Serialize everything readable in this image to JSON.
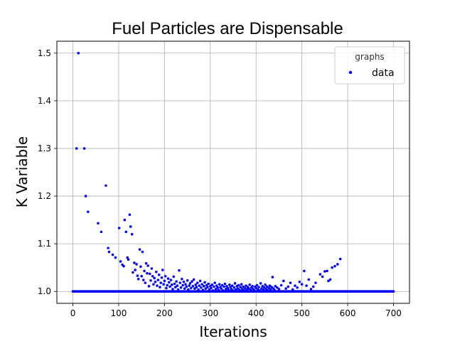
{
  "chart_data": {
    "type": "scatter",
    "title": "Fuel Particles are Dispensable",
    "xlabel": "Iterations",
    "ylabel": "K Variable",
    "xlim": [
      -35,
      735
    ],
    "ylim": [
      0.975,
      1.525
    ],
    "xticks": [
      0,
      100,
      200,
      300,
      400,
      500,
      600,
      700
    ],
    "yticks": [
      1.0,
      1.1,
      1.2,
      1.3,
      1.4,
      1.5
    ],
    "xtick_labels": [
      "0",
      "100",
      "200",
      "300",
      "400",
      "500",
      "600",
      "700"
    ],
    "ytick_labels": [
      "1.0",
      "1.1",
      "1.2",
      "1.3",
      "1.4",
      "1.5"
    ],
    "grid": true,
    "legend": {
      "title": "graphs",
      "placement": "top-right",
      "entries": [
        "data"
      ]
    },
    "series": [
      {
        "name": "data",
        "color": "#0000ff",
        "baseline": {
          "y": 1.0,
          "x_start": 0,
          "x_end": 700,
          "x_step": 2
        },
        "points": [
          [
            12,
            1.5
          ],
          [
            8,
            1.3
          ],
          [
            25,
            1.3
          ],
          [
            28,
            1.2
          ],
          [
            33,
            1.167
          ],
          [
            55,
            1.143
          ],
          [
            62,
            1.125
          ],
          [
            72,
            1.222
          ],
          [
            77,
            1.091
          ],
          [
            79,
            1.083
          ],
          [
            87,
            1.077
          ],
          [
            93,
            1.071
          ],
          [
            101,
            1.133
          ],
          [
            104,
            1.063
          ],
          [
            108,
            1.056
          ],
          [
            111,
            1.053
          ],
          [
            113,
            1.15
          ],
          [
            116,
            1.125
          ],
          [
            119,
            1.071
          ],
          [
            121,
            1.067
          ],
          [
            124,
            1.161
          ],
          [
            126,
            1.136
          ],
          [
            129,
            1.12
          ],
          [
            131,
            1.04
          ],
          [
            134,
            1.06
          ],
          [
            136,
            1.045
          ],
          [
            139,
            1.057
          ],
          [
            141,
            1.033
          ],
          [
            143,
            1.026
          ],
          [
            146,
            1.088
          ],
          [
            148,
            1.052
          ],
          [
            150,
            1.032
          ],
          [
            152,
            1.083
          ],
          [
            154,
            1.024
          ],
          [
            156,
            1.043
          ],
          [
            158,
            1.018
          ],
          [
            160,
            1.059
          ],
          [
            162,
            1.038
          ],
          [
            164,
            1.054
          ],
          [
            166,
            1.011
          ],
          [
            168,
            1.037
          ],
          [
            170,
            1.023
          ],
          [
            172,
            1.048
          ],
          [
            174,
            1.032
          ],
          [
            176,
            1.015
          ],
          [
            178,
            1.028
          ],
          [
            180,
            1.02
          ],
          [
            182,
            1.041
          ],
          [
            184,
            1.012
          ],
          [
            186,
            1.024
          ],
          [
            188,
            1.035
          ],
          [
            190,
            1.009
          ],
          [
            192,
            1.018
          ],
          [
            194,
            1.029
          ],
          [
            196,
            1.045
          ],
          [
            198,
            1.015
          ],
          [
            200,
            1.022
          ],
          [
            202,
            1.032
          ],
          [
            204,
            1.007
          ],
          [
            206,
            1.013
          ],
          [
            208,
            1.027
          ],
          [
            210,
            1.019
          ],
          [
            212,
            1.01
          ],
          [
            214,
            1.024
          ],
          [
            216,
            1.014
          ],
          [
            218,
            1.005
          ],
          [
            220,
            1.031
          ],
          [
            222,
            1.016
          ],
          [
            224,
            1.009
          ],
          [
            226,
            1.021
          ],
          [
            228,
            1.012
          ],
          [
            230,
            1.004
          ],
          [
            232,
            1.044
          ],
          [
            234,
            1.018
          ],
          [
            236,
            1.008
          ],
          [
            238,
            1.026
          ],
          [
            240,
            1.013
          ],
          [
            242,
            1.02
          ],
          [
            244,
            1.006
          ],
          [
            246,
            1.015
          ],
          [
            248,
            1.01
          ],
          [
            250,
            1.023
          ],
          [
            252,
            1.004
          ],
          [
            254,
            1.012
          ],
          [
            256,
            1.017
          ],
          [
            258,
            1.007
          ],
          [
            260,
            1.021
          ],
          [
            262,
            1.011
          ],
          [
            264,
            1.025
          ],
          [
            266,
            1.006
          ],
          [
            268,
            1.014
          ],
          [
            270,
            1.009
          ],
          [
            272,
            1.018
          ],
          [
            274,
            1.004
          ],
          [
            276,
            1.012
          ],
          [
            278,
            1.022
          ],
          [
            280,
            1.008
          ],
          [
            282,
            1.015
          ],
          [
            284,
            1.003
          ],
          [
            286,
            1.011
          ],
          [
            288,
            1.019
          ],
          [
            290,
            1.006
          ],
          [
            292,
            1.013
          ],
          [
            294,
            1.009
          ],
          [
            296,
            1.016
          ],
          [
            298,
            1.004
          ],
          [
            300,
            1.011
          ],
          [
            302,
            1.007
          ],
          [
            304,
            1.014
          ],
          [
            306,
            1.002
          ],
          [
            308,
            1.01
          ],
          [
            310,
            1.018
          ],
          [
            312,
            1.005
          ],
          [
            314,
            1.012
          ],
          [
            316,
            1.008
          ],
          [
            318,
            1.003
          ],
          [
            320,
            1.015
          ],
          [
            322,
            1.009
          ],
          [
            324,
            1.006
          ],
          [
            326,
            1.013
          ],
          [
            328,
            1.002
          ],
          [
            330,
            1.01
          ],
          [
            332,
            1.016
          ],
          [
            334,
            1.005
          ],
          [
            336,
            1.011
          ],
          [
            338,
            1.007
          ],
          [
            340,
            1.003
          ],
          [
            342,
            1.014
          ],
          [
            344,
            1.009
          ],
          [
            346,
            1.005
          ],
          [
            348,
            1.012
          ],
          [
            350,
            1.002
          ],
          [
            352,
            1.008
          ],
          [
            354,
            1.017
          ],
          [
            356,
            1.004
          ],
          [
            358,
            1.011
          ],
          [
            360,
            1.006
          ],
          [
            362,
            1.013
          ],
          [
            364,
            1.003
          ],
          [
            366,
            1.009
          ],
          [
            368,
            1.015
          ],
          [
            370,
            1.005
          ],
          [
            372,
            1.01
          ],
          [
            374,
            1.002
          ],
          [
            376,
            1.007
          ],
          [
            378,
            1.012
          ],
          [
            380,
            1.004
          ],
          [
            382,
            1.009
          ],
          [
            384,
            1.006
          ],
          [
            386,
            1.014
          ],
          [
            388,
            1.003
          ],
          [
            390,
            1.008
          ],
          [
            392,
            1.011
          ],
          [
            394,
            1.005
          ],
          [
            396,
            1.002
          ],
          [
            398,
            1.01
          ],
          [
            400,
            1.007
          ],
          [
            402,
            1.013
          ],
          [
            404,
            1.004
          ],
          [
            406,
            1.009
          ],
          [
            408,
            1.002
          ],
          [
            410,
            1.017
          ],
          [
            412,
            1.006
          ],
          [
            414,
            1.011
          ],
          [
            416,
            1.003
          ],
          [
            418,
            1.008
          ],
          [
            420,
            1.014
          ],
          [
            422,
            1.005
          ],
          [
            424,
            1.01
          ],
          [
            426,
            1.002
          ],
          [
            428,
            1.007
          ],
          [
            430,
            1.012
          ],
          [
            432,
            1.004
          ],
          [
            434,
            1.009
          ],
          [
            436,
            1.03
          ],
          [
            438,
            1.006
          ],
          [
            440,
            1.003
          ],
          [
            442,
            1.011
          ],
          [
            446,
            1.008
          ],
          [
            450,
            1.005
          ],
          [
            455,
            1.013
          ],
          [
            460,
            1.022
          ],
          [
            465,
            1.006
          ],
          [
            470,
            1.01
          ],
          [
            475,
            1.018
          ],
          [
            480,
            1.004
          ],
          [
            485,
            1.012
          ],
          [
            490,
            1.008
          ],
          [
            495,
            1.02
          ],
          [
            500,
            1.015
          ],
          [
            505,
            1.043
          ],
          [
            510,
            1.012
          ],
          [
            515,
            1.025
          ],
          [
            520,
            1.005
          ],
          [
            525,
            1.01
          ],
          [
            530,
            1.018
          ],
          [
            540,
            1.036
          ],
          [
            545,
            1.031
          ],
          [
            550,
            1.042
          ],
          [
            555,
            1.043
          ],
          [
            558,
            1.022
          ],
          [
            562,
            1.025
          ],
          [
            566,
            1.05
          ],
          [
            572,
            1.053
          ],
          [
            578,
            1.057
          ],
          [
            584,
            1.068
          ]
        ]
      }
    ]
  }
}
